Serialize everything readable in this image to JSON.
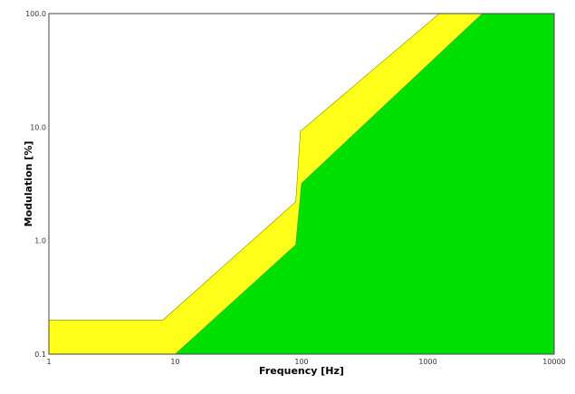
{
  "chart_data": {
    "type": "area",
    "title": "",
    "xlabel": "Frequency [Hz]",
    "ylabel": "Modulation [%]",
    "xscale": "log",
    "yscale": "log",
    "xlim": [
      1,
      10000
    ],
    "ylim": [
      0.1,
      100
    ],
    "xticks": [
      "1",
      "10",
      "100",
      "1000",
      "10000"
    ],
    "yticks": [
      "0.1",
      "1.0",
      "10.0",
      "100.0"
    ],
    "grid": false,
    "series": [
      {
        "color": "#ffff1a",
        "x": [
          1,
          8,
          90,
          98,
          1230,
          10000
        ],
        "y": [
          0.2,
          0.2,
          2.2,
          9.2,
          100,
          100
        ]
      },
      {
        "color": "#00e000",
        "x": [
          10,
          90,
          100,
          2700,
          10000
        ],
        "y": [
          0.1,
          0.92,
          3.2,
          100,
          100
        ]
      }
    ]
  }
}
